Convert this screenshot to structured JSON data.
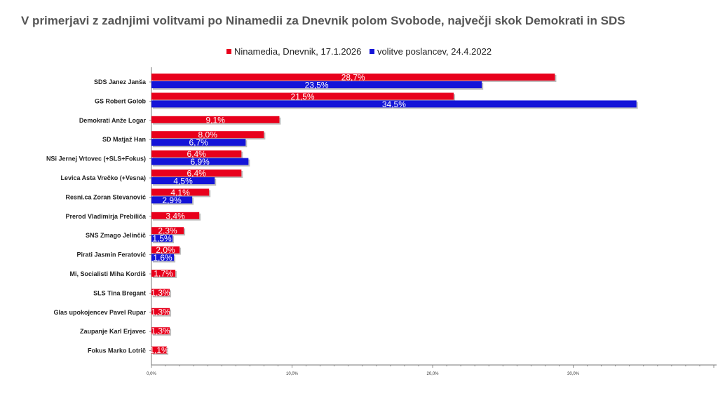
{
  "title": "V primerjavi z zadnjimi volitvami po Ninamedii za Dnevnik polom Svobode, največji skok Demokrati in SDS",
  "colors": {
    "ninamedia": "#e8001c",
    "volitve": "#1414d8"
  },
  "chart_data": {
    "type": "bar",
    "orientation": "horizontal",
    "title": "V primerjavi z zadnjimi volitvami po Ninamedii za Dnevnik polom Svobode, največji skok Demokrati in SDS",
    "categories": [
      "SDS Janez Janša",
      "GS Robert Golob",
      "Demokrati Anže Logar",
      "SD Matjaž Han",
      "NSi Jernej Vrtovec (+SLS+Fokus)",
      "Levica Asta Vrečko (+Vesna)",
      "Resni.ca Zoran Stevanović",
      "Prerod Vladimirja Prebiliča",
      "SNS Zmago Jelinčič",
      "Pirati Jasmin Feratović",
      "Mi, Socialisti Miha Kordiš",
      "SLS Tina Bregant",
      "Glas upokojencev Pavel Rupar",
      "Zaupanje Karl Erjavec",
      "Fokus Marko Lotrič"
    ],
    "series": [
      {
        "name": "Ninamedia, Dnevnik, 17.1.2026",
        "values": [
          28.7,
          21.5,
          9.1,
          8.0,
          6.4,
          6.4,
          4.1,
          3.4,
          2.3,
          2.0,
          1.7,
          1.3,
          1.3,
          1.3,
          1.1
        ],
        "labels": [
          "28,7%",
          "21,5%",
          "9,1%",
          "8,0%",
          "6,4%",
          "6,4%",
          "4,1%",
          "3,4%",
          "2,3%",
          "2,0%",
          "1,7%",
          "1,3%",
          "1,3%",
          "1,3%",
          "1,1%"
        ]
      },
      {
        "name": "volitve poslancev, 24.4.2022",
        "values": [
          23.5,
          34.5,
          null,
          6.7,
          6.9,
          4.5,
          2.9,
          null,
          1.5,
          1.6,
          null,
          null,
          null,
          null,
          null
        ],
        "labels": [
          "23,5%",
          "34,5%",
          null,
          "6,7%",
          "6,9%",
          "4,5%",
          "2,9%",
          null,
          "1,5%",
          "1,6%",
          null,
          null,
          null,
          null,
          null
        ]
      }
    ],
    "xlim": [
      0,
      40
    ],
    "xticks": [
      0,
      10,
      20,
      30
    ],
    "xtick_labels": [
      "0,0%",
      "10,0%",
      "20,0%",
      "30,0%"
    ],
    "legend_position": "top",
    "grid": false
  }
}
